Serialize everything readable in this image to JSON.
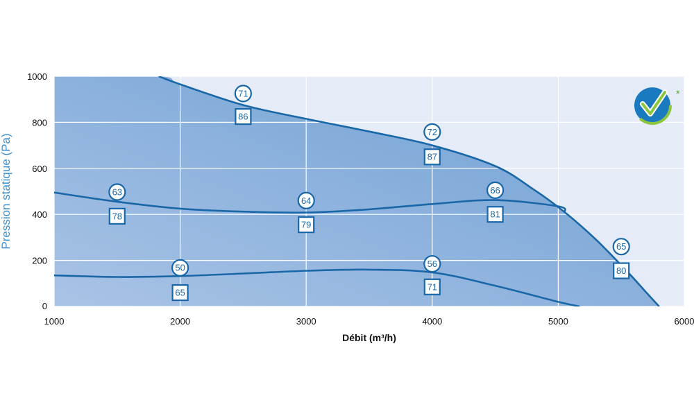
{
  "chart_data": {
    "type": "line",
    "xlabel": "Débit (m³/h)",
    "ylabel": "Pression statique (Pa)",
    "xlim": [
      1000,
      6000
    ],
    "ylim": [
      0,
      1000
    ],
    "x_ticks": [
      "1000",
      "2000",
      "3000",
      "4000",
      "5000",
      "6000"
    ],
    "y_ticks": [
      "0",
      "200",
      "400",
      "600",
      "800",
      "1000"
    ],
    "grid": true,
    "colors": {
      "plot_bg": "#e6ecf7",
      "area_light": "#a9c3e6",
      "area_dark": "#6d9fd3",
      "curve": "#1a67a8",
      "grid": "#ffffff",
      "ylabel": "#3a8fd0"
    },
    "series": [
      {
        "x": [
          1830,
          2000,
          2500,
          3000,
          3500,
          4000,
          4500,
          4800,
          5050,
          5300,
          5550,
          5700,
          5800
        ],
        "y": [
          1000,
          965,
          875,
          815,
          760,
          700,
          610,
          510,
          410,
          290,
          150,
          60,
          0
        ]
      },
      {
        "x": [
          1000,
          1500,
          2000,
          2500,
          3000,
          3500,
          4000,
          4500,
          5000,
          5050
        ],
        "y": [
          495,
          455,
          425,
          412,
          408,
          422,
          445,
          462,
          435,
          410
        ]
      },
      {
        "x": [
          1000,
          1500,
          2000,
          2500,
          3000,
          3500,
          4000,
          4500,
          5000,
          5170
        ],
        "y": [
          135,
          128,
          132,
          143,
          155,
          160,
          148,
          90,
          20,
          0
        ]
      }
    ],
    "annotations": [
      {
        "x": 2500,
        "y": 925,
        "text": "71",
        "shape": "circle"
      },
      {
        "x": 2500,
        "y": 825,
        "text": "86",
        "shape": "square"
      },
      {
        "x": 4000,
        "y": 758,
        "text": "72",
        "shape": "circle"
      },
      {
        "x": 4000,
        "y": 650,
        "text": "87",
        "shape": "square"
      },
      {
        "x": 1500,
        "y": 497,
        "text": "63",
        "shape": "circle"
      },
      {
        "x": 1500,
        "y": 392,
        "text": "78",
        "shape": "square"
      },
      {
        "x": 3000,
        "y": 460,
        "text": "64",
        "shape": "circle"
      },
      {
        "x": 3000,
        "y": 355,
        "text": "79",
        "shape": "square"
      },
      {
        "x": 4500,
        "y": 505,
        "text": "66",
        "shape": "circle"
      },
      {
        "x": 4500,
        "y": 400,
        "text": "81",
        "shape": "square"
      },
      {
        "x": 5500,
        "y": 260,
        "text": "65",
        "shape": "circle"
      },
      {
        "x": 5500,
        "y": 155,
        "text": "80",
        "shape": "square"
      },
      {
        "x": 2000,
        "y": 168,
        "text": "50",
        "shape": "circle"
      },
      {
        "x": 2000,
        "y": 60,
        "text": "65",
        "shape": "square"
      },
      {
        "x": 4000,
        "y": 185,
        "text": "56",
        "shape": "circle"
      },
      {
        "x": 4000,
        "y": 85,
        "text": "71",
        "shape": "square"
      }
    ],
    "logo": {
      "icon": "checkmark-logo-icon",
      "mark": "*"
    }
  }
}
